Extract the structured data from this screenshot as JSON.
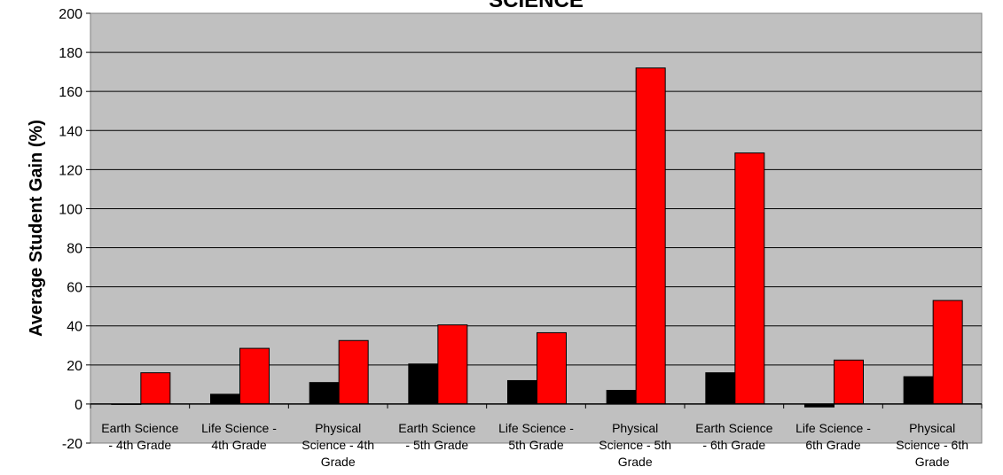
{
  "chart_data": {
    "type": "bar",
    "title": "SCIENCE",
    "xlabel": "",
    "ylabel": "Average Student Gain (%)",
    "ylim": [
      -20,
      200
    ],
    "yticks": [
      -20,
      0,
      20,
      40,
      60,
      80,
      100,
      120,
      140,
      160,
      180,
      200
    ],
    "grid": true,
    "categories": [
      [
        "Earth Science",
        "- 4th Grade"
      ],
      [
        "Life Science -",
        "4th Grade"
      ],
      [
        "Physical",
        "Science - 4th",
        "Grade"
      ],
      [
        "Earth Science",
        "- 5th Grade"
      ],
      [
        "Life Science -",
        "5th Grade"
      ],
      [
        "Physical",
        "Science - 5th",
        "Grade"
      ],
      [
        "Earth Science",
        "- 6th Grade"
      ],
      [
        "Life Science -",
        "6th Grade"
      ],
      [
        "Physical",
        "Science - 6th",
        "Grade"
      ]
    ],
    "series": [
      {
        "color": "#000000",
        "values": [
          0,
          5,
          11,
          20.5,
          12,
          7,
          16,
          -1.5,
          14
        ]
      },
      {
        "color": "#ff0000",
        "values": [
          16,
          28.5,
          32.5,
          40.5,
          36.5,
          172,
          128.5,
          22.5,
          53
        ]
      }
    ],
    "plot_background": "#c0c0c0"
  }
}
